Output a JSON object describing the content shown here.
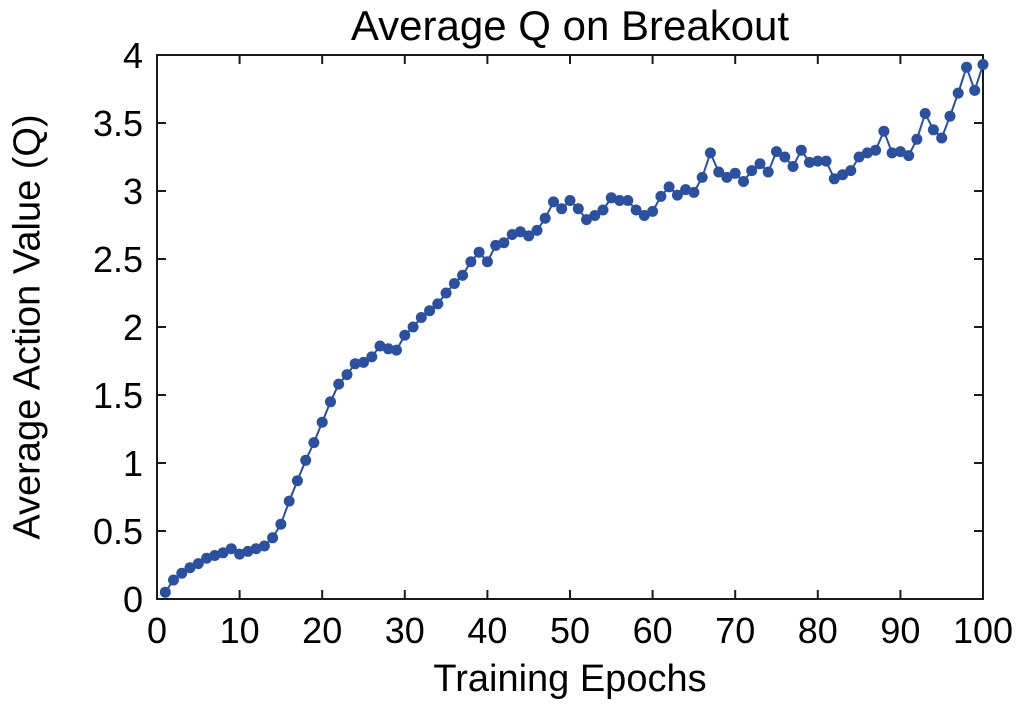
{
  "figure": {
    "title": "Average Q on Breakout",
    "xlabel": "Training Epochs",
    "ylabel": "Average Action Value (Q)"
  },
  "colors": {
    "line": "#2B50A0",
    "marker": "#2B50A0",
    "axis": "#1a1a1a",
    "text": "#000000",
    "background": "#ffffff"
  },
  "chart_data": {
    "type": "line",
    "title": "Average Q on Breakout",
    "xlabel": "Training Epochs",
    "ylabel": "Average Action Value (Q)",
    "xlim": [
      0,
      100
    ],
    "ylim": [
      0,
      4
    ],
    "x_ticks": [
      0,
      10,
      20,
      30,
      40,
      50,
      60,
      70,
      80,
      90,
      100
    ],
    "y_ticks": [
      0,
      0.5,
      1,
      1.5,
      2,
      2.5,
      3,
      3.5,
      4
    ],
    "grid": false,
    "legend_position": "none",
    "marker": "circle",
    "x_start": 1,
    "x_step": 1,
    "series": [
      {
        "name": "Average action value (Q)",
        "values": [
          0.05,
          0.14,
          0.19,
          0.23,
          0.26,
          0.3,
          0.32,
          0.34,
          0.37,
          0.33,
          0.35,
          0.37,
          0.39,
          0.45,
          0.55,
          0.72,
          0.87,
          1.02,
          1.15,
          1.3,
          1.45,
          1.58,
          1.65,
          1.73,
          1.74,
          1.78,
          1.86,
          1.84,
          1.83,
          1.94,
          2.0,
          2.07,
          2.12,
          2.17,
          2.25,
          2.32,
          2.38,
          2.48,
          2.55,
          2.48,
          2.6,
          2.62,
          2.68,
          2.7,
          2.67,
          2.71,
          2.8,
          2.92,
          2.87,
          2.93,
          2.87,
          2.79,
          2.82,
          2.86,
          2.95,
          2.93,
          2.93,
          2.86,
          2.82,
          2.85,
          2.96,
          3.03,
          2.97,
          3.01,
          2.99,
          3.1,
          3.28,
          3.14,
          3.1,
          3.13,
          3.07,
          3.15,
          3.2,
          3.14,
          3.29,
          3.25,
          3.18,
          3.3,
          3.21,
          3.22,
          3.22,
          3.09,
          3.12,
          3.15,
          3.25,
          3.28,
          3.3,
          3.44,
          3.28,
          3.29,
          3.26,
          3.38,
          3.57,
          3.45,
          3.39,
          3.55,
          3.72,
          3.91,
          3.74,
          3.93
        ]
      }
    ]
  }
}
